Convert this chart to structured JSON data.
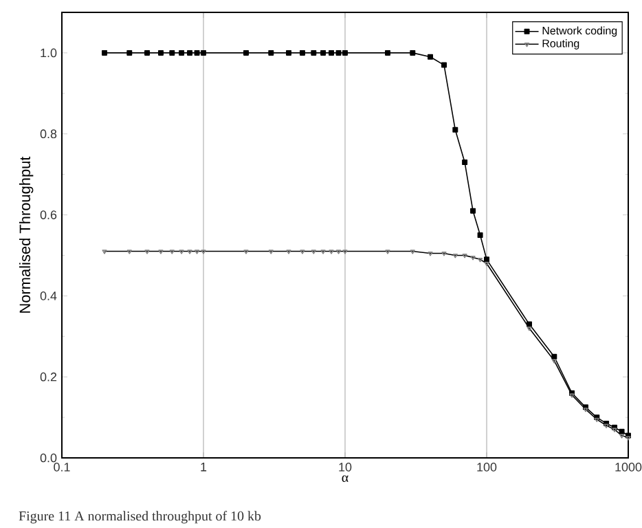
{
  "chart_data": {
    "type": "line",
    "xlabel": "α",
    "ylabel": "Normalised Throughput",
    "annotations": [
      "Figure 11 A normalised throughput of 10 kb"
    ],
    "log": "x",
    "grid": "x",
    "legend": "top right",
    "xlim": [
      0.1,
      1000
    ],
    "xticks": [
      0.1,
      1,
      10,
      100,
      1000
    ],
    "ylim": [
      0,
      1.1
    ],
    "yticks": [
      {
        "value": 0,
        "label": "0.0"
      },
      {
        "value": 0.2,
        "label": "0.2"
      },
      {
        "value": 0.4,
        "label": "0.4"
      },
      {
        "value": 0.6,
        "label": "0.6"
      },
      {
        "value": 0.8,
        "label": "0.8"
      },
      {
        "value": 1,
        "label": "1.0"
      }
    ],
    "x": [
      0.2,
      0.3,
      0.4,
      0.5,
      0.6,
      0.7,
      0.8,
      0.9,
      1,
      2,
      3,
      4,
      5,
      6,
      7,
      8,
      9,
      10,
      20,
      30,
      40,
      50,
      60,
      70,
      80,
      90,
      100,
      200,
      300,
      400,
      500,
      600,
      700,
      800,
      900,
      1000
    ],
    "series": [
      {
        "name": "Network coding",
        "color": "#000000",
        "marker": "square",
        "values": [
          1,
          1,
          1,
          1,
          1,
          1,
          1,
          1,
          1,
          1,
          1,
          1,
          1,
          1,
          1,
          1,
          1,
          1,
          1,
          1,
          0.99,
          0.97,
          0.81,
          0.73,
          0.61,
          0.55,
          0.49,
          0.33,
          0.25,
          0.16,
          0.125,
          0.1,
          0.085,
          0.075,
          0.065,
          0.055
        ]
      },
      {
        "name": "Routing",
        "color": "#000000",
        "marker": "triangle",
        "values": [
          0.51,
          0.51,
          0.51,
          0.51,
          0.51,
          0.51,
          0.51,
          0.51,
          0.51,
          0.51,
          0.51,
          0.51,
          0.51,
          0.51,
          0.51,
          0.51,
          0.51,
          0.51,
          0.51,
          0.51,
          0.505,
          0.505,
          0.5,
          0.5,
          0.495,
          0.49,
          0.48,
          0.32,
          0.24,
          0.155,
          0.12,
          0.095,
          0.08,
          0.07,
          0.055,
          0.05
        ]
      }
    ]
  }
}
